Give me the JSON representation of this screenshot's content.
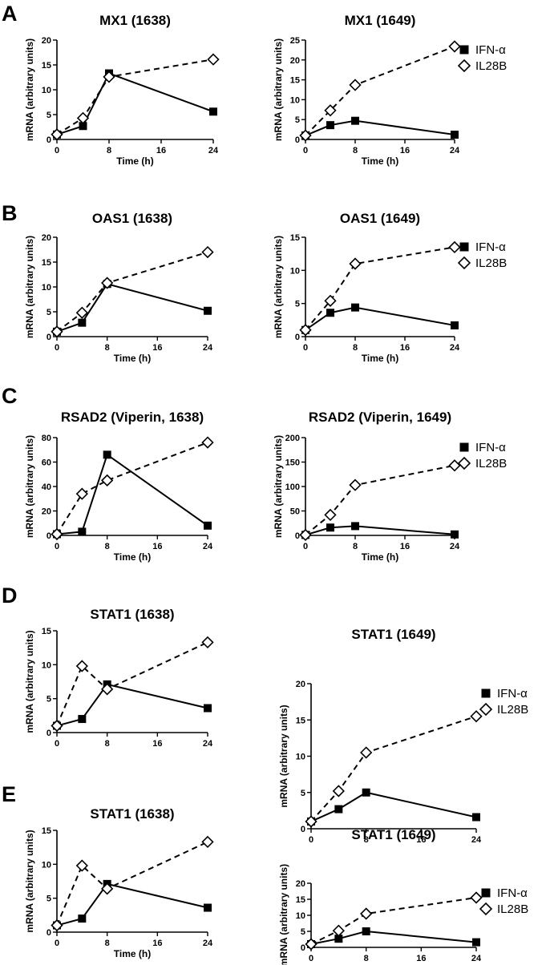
{
  "figure": {
    "panel_letters": [
      "A",
      "B",
      "C",
      "D",
      "E"
    ]
  },
  "chart_data": [
    {
      "type": "line",
      "panel": "A",
      "title": "MX1 (1638)",
      "xlabel": "Time (h)",
      "ylabel": "mRNA (arbitrary units)",
      "x": [
        0,
        4,
        8,
        24
      ],
      "xticks": [
        0,
        8,
        16,
        24
      ],
      "xlim": [
        0,
        24
      ],
      "ylim": [
        0,
        20
      ],
      "yticks": [
        0,
        5,
        10,
        15,
        20
      ],
      "grid": false,
      "legend": null,
      "series": [
        {
          "name": "IFN-α",
          "values": [
            1.0,
            2.7,
            13.3,
            5.6
          ],
          "style": "solid",
          "marker": "filled-square"
        },
        {
          "name": "IL28B",
          "values": [
            1.0,
            4.3,
            12.6,
            16.1
          ],
          "style": "dashed",
          "marker": "open-diamond"
        }
      ]
    },
    {
      "type": "line",
      "panel": "A",
      "title": "MX1 (1649)",
      "xlabel": "Time (h)",
      "ylabel": "mRNA (arbitrary units)",
      "x": [
        0,
        4,
        8,
        24
      ],
      "xticks": [
        0,
        8,
        16,
        24
      ],
      "xlim": [
        0,
        24
      ],
      "ylim": [
        0,
        25
      ],
      "yticks": [
        0,
        5,
        10,
        15,
        20,
        25
      ],
      "grid": false,
      "legend": "top-right",
      "series": [
        {
          "name": "IFN-α",
          "values": [
            1.0,
            3.6,
            4.7,
            1.2
          ],
          "style": "solid",
          "marker": "filled-square"
        },
        {
          "name": "IL28B",
          "values": [
            1.0,
            7.3,
            13.7,
            23.4
          ],
          "style": "dashed",
          "marker": "open-diamond"
        }
      ]
    },
    {
      "type": "line",
      "panel": "B",
      "title": "OAS1 (1638)",
      "xlabel": "Time (h)",
      "ylabel": "mRNA (arbitrary units)",
      "x": [
        0,
        4,
        8,
        24
      ],
      "xticks": [
        0,
        8,
        16,
        24
      ],
      "xlim": [
        0,
        24
      ],
      "ylim": [
        0,
        20
      ],
      "yticks": [
        0,
        5,
        10,
        15,
        20
      ],
      "grid": false,
      "legend": null,
      "series": [
        {
          "name": "IFN-α",
          "values": [
            1.0,
            2.8,
            10.6,
            5.2
          ],
          "style": "solid",
          "marker": "filled-square"
        },
        {
          "name": "IL28B",
          "values": [
            1.0,
            4.8,
            10.8,
            17.0
          ],
          "style": "dashed",
          "marker": "open-diamond"
        }
      ]
    },
    {
      "type": "line",
      "panel": "B",
      "title": "OAS1 (1649)",
      "xlabel": "Time (h)",
      "ylabel": "mRNA (arbitrary units)",
      "x": [
        0,
        4,
        8,
        24
      ],
      "xticks": [
        0,
        8,
        16,
        24
      ],
      "xlim": [
        0,
        24
      ],
      "ylim": [
        0,
        15
      ],
      "yticks": [
        0,
        5,
        10,
        15
      ],
      "grid": false,
      "legend": "top-right",
      "series": [
        {
          "name": "IFN-α",
          "values": [
            1.0,
            3.6,
            4.4,
            1.7
          ],
          "style": "solid",
          "marker": "filled-square"
        },
        {
          "name": "IL28B",
          "values": [
            1.0,
            5.4,
            11.0,
            13.5
          ],
          "style": "dashed",
          "marker": "open-diamond"
        }
      ]
    },
    {
      "type": "line",
      "panel": "C",
      "title": "RSAD2 (Viperin, 1638)",
      "xlabel": "Time (h)",
      "ylabel": "mRNA (arbitrary units)",
      "x": [
        0,
        4,
        8,
        24
      ],
      "xticks": [
        0,
        8,
        16,
        24
      ],
      "xlim": [
        0,
        24
      ],
      "ylim": [
        0,
        80
      ],
      "yticks": [
        0,
        20,
        40,
        60,
        80
      ],
      "grid": false,
      "legend": null,
      "series": [
        {
          "name": "IFN-α",
          "values": [
            1.0,
            3.0,
            66.0,
            8.0
          ],
          "style": "solid",
          "marker": "filled-square"
        },
        {
          "name": "IL28B",
          "values": [
            1.0,
            34.0,
            45.0,
            76.0
          ],
          "style": "dashed",
          "marker": "open-diamond"
        }
      ]
    },
    {
      "type": "line",
      "panel": "C",
      "title": "RSAD2 (Viperin, 1649)",
      "xlabel": "Time (h)",
      "ylabel": "mRNA (arbitrary units)",
      "x": [
        0,
        4,
        8,
        24
      ],
      "xticks": [
        0,
        8,
        16,
        24
      ],
      "xlim": [
        0,
        24
      ],
      "ylim": [
        0,
        200
      ],
      "yticks": [
        0,
        50,
        100,
        150,
        200
      ],
      "grid": false,
      "legend": "top-right",
      "series": [
        {
          "name": "IFN-α",
          "values": [
            1.0,
            16.0,
            19.0,
            2.0
          ],
          "style": "solid",
          "marker": "filled-square"
        },
        {
          "name": "IL28B",
          "values": [
            1.0,
            42.0,
            103.0,
            143.0
          ],
          "style": "dashed",
          "marker": "open-diamond"
        }
      ]
    },
    {
      "type": "line",
      "panel": "D",
      "title": "STAT1 (1638)",
      "xlabel": "",
      "ylabel": "mRNA (arbitrary units)",
      "x": [
        0,
        4,
        8,
        24
      ],
      "xticks": [
        0,
        8,
        16,
        24
      ],
      "xlim": [
        0,
        24
      ],
      "ylim": [
        0,
        15
      ],
      "yticks": [
        0,
        5,
        10,
        15
      ],
      "grid": false,
      "legend": null,
      "series": [
        {
          "name": "IFN-α",
          "values": [
            1.0,
            2.0,
            7.1,
            3.6
          ],
          "style": "solid",
          "marker": "filled-square"
        },
        {
          "name": "IL28B",
          "values": [
            1.0,
            9.8,
            6.4,
            13.3
          ],
          "style": "dashed",
          "marker": "open-diamond"
        }
      ]
    },
    {
      "type": "line",
      "panel": "D",
      "title": "STAT1 (1649)",
      "xlabel": "",
      "ylabel": "mRNA (arbitrary units)",
      "x": [
        0,
        4,
        8,
        24
      ],
      "xticks": [
        0,
        8,
        16,
        24
      ],
      "xlim": [
        0,
        24
      ],
      "ylim": [
        0,
        20
      ],
      "yticks": [
        0,
        5,
        10,
        15,
        20
      ],
      "grid": false,
      "legend": "top-right",
      "series": [
        {
          "name": "IFN-α",
          "values": [
            1.0,
            2.7,
            5.0,
            1.6
          ],
          "style": "solid",
          "marker": "filled-square"
        },
        {
          "name": "IL28B",
          "values": [
            1.0,
            5.2,
            10.5,
            15.5
          ],
          "style": "dashed",
          "marker": "open-diamond"
        }
      ]
    },
    {
      "type": "line",
      "panel": "E",
      "title": "STAT1 (1638)",
      "xlabel": "Time (h)",
      "ylabel": "mRNA (arbitrary units)",
      "x": [
        0,
        4,
        8,
        24
      ],
      "xticks": [
        0,
        8,
        16,
        24
      ],
      "xlim": [
        0,
        24
      ],
      "ylim": [
        0,
        15
      ],
      "yticks": [
        0,
        5,
        10,
        15
      ],
      "grid": false,
      "legend": null,
      "series": [
        {
          "name": "IFN-α",
          "values": [
            1.0,
            2.0,
            7.1,
            3.6
          ],
          "style": "solid",
          "marker": "filled-square"
        },
        {
          "name": "IL28B",
          "values": [
            1.0,
            9.8,
            6.4,
            13.3
          ],
          "style": "dashed",
          "marker": "open-diamond"
        }
      ]
    },
    {
      "type": "line",
      "panel": "E",
      "title": "STAT1 (1649)",
      "xlabel": "",
      "ylabel": "mRNA (arbitrary units)",
      "x": [
        0,
        4,
        8,
        24
      ],
      "xticks": [
        0,
        8,
        16,
        24
      ],
      "xlim": [
        0,
        24
      ],
      "ylim": [
        0,
        20
      ],
      "yticks": [
        0,
        5,
        10,
        15,
        20
      ],
      "grid": false,
      "legend": "top-right",
      "series": [
        {
          "name": "IFN-α",
          "values": [
            1.0,
            2.7,
            5.0,
            1.6
          ],
          "style": "solid",
          "marker": "filled-square"
        },
        {
          "name": "IL28B",
          "values": [
            1.0,
            5.2,
            10.5,
            15.5
          ],
          "style": "dashed",
          "marker": "open-diamond"
        }
      ]
    }
  ]
}
